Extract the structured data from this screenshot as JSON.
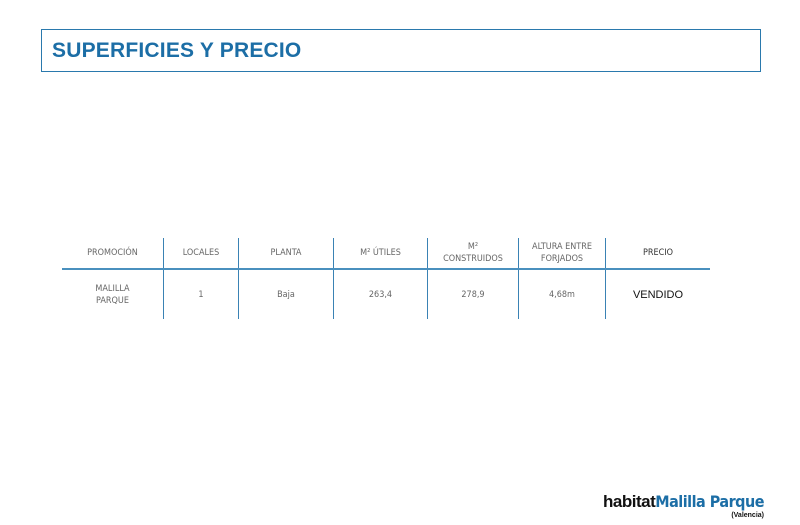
{
  "title": "SUPERFICIES Y PRECIO",
  "table": {
    "headers": [
      "PROMOCIÓN",
      "LOCALES",
      "PLANTA",
      "M² ÚTILES",
      "M²\nCONSTRUIDOS",
      "ALTURA ENTRE\nFORJADOS",
      "PRECIO"
    ],
    "rows": [
      [
        "MALILLA\nPARQUE",
        "1",
        "Baja",
        "263,4",
        "278,9",
        "4,68m",
        "VENDIDO"
      ]
    ]
  },
  "logo": {
    "brand": "habitat",
    "name": "Malilla Parque",
    "location": "(Valencia)"
  },
  "colors": {
    "accent": "#1c6ea6",
    "border": "#3a82b4"
  }
}
